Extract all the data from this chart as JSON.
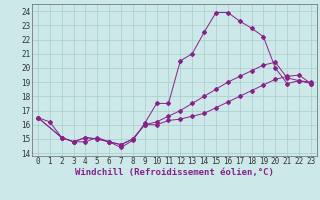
{
  "background_color": "#cce8e8",
  "line_color": "#882288",
  "grid_color": "#aacccc",
  "xlabel": "Windchill (Refroidissement éolien,°C)",
  "xlabel_fontsize": 6.5,
  "tick_fontsize": 5.5,
  "xlim": [
    -0.5,
    23.5
  ],
  "ylim": [
    13.8,
    24.5
  ],
  "yticks": [
    14,
    15,
    16,
    17,
    18,
    19,
    20,
    21,
    22,
    23,
    24
  ],
  "xticks": [
    0,
    1,
    2,
    3,
    4,
    5,
    6,
    7,
    8,
    9,
    10,
    11,
    12,
    13,
    14,
    15,
    16,
    17,
    18,
    19,
    20,
    21,
    22,
    23
  ],
  "series": [
    {
      "x": [
        0,
        1,
        2,
        3,
        4,
        5,
        6,
        7,
        8,
        9,
        10,
        11,
        12,
        13,
        14,
        15,
        16,
        17,
        18,
        19,
        20,
        21,
        22,
        23
      ],
      "y": [
        16.5,
        16.2,
        15.1,
        14.8,
        14.8,
        15.1,
        14.8,
        14.4,
        14.9,
        16.1,
        17.5,
        17.5,
        20.5,
        21.0,
        22.5,
        23.9,
        23.9,
        23.3,
        22.8,
        22.2,
        20.0,
        18.9,
        19.1,
        19.0
      ]
    },
    {
      "x": [
        0,
        2,
        3,
        4,
        5,
        6,
        7,
        8,
        9,
        10,
        11,
        12,
        13,
        14,
        15,
        16,
        17,
        18,
        19,
        20,
        21,
        22,
        23
      ],
      "y": [
        16.5,
        15.1,
        14.8,
        15.1,
        15.0,
        14.8,
        14.6,
        15.0,
        16.0,
        16.0,
        16.3,
        16.4,
        16.6,
        16.8,
        17.2,
        17.6,
        18.0,
        18.4,
        18.8,
        19.2,
        19.4,
        19.5,
        18.9
      ]
    },
    {
      "x": [
        0,
        2,
        3,
        4,
        5,
        6,
        7,
        8,
        9,
        10,
        11,
        12,
        13,
        14,
        15,
        16,
        17,
        18,
        19,
        20,
        21,
        22,
        23
      ],
      "y": [
        16.5,
        15.1,
        14.8,
        15.1,
        15.0,
        14.8,
        14.6,
        15.0,
        16.0,
        16.2,
        16.6,
        17.0,
        17.5,
        18.0,
        18.5,
        19.0,
        19.4,
        19.8,
        20.2,
        20.4,
        19.3,
        19.1,
        18.9
      ]
    }
  ]
}
